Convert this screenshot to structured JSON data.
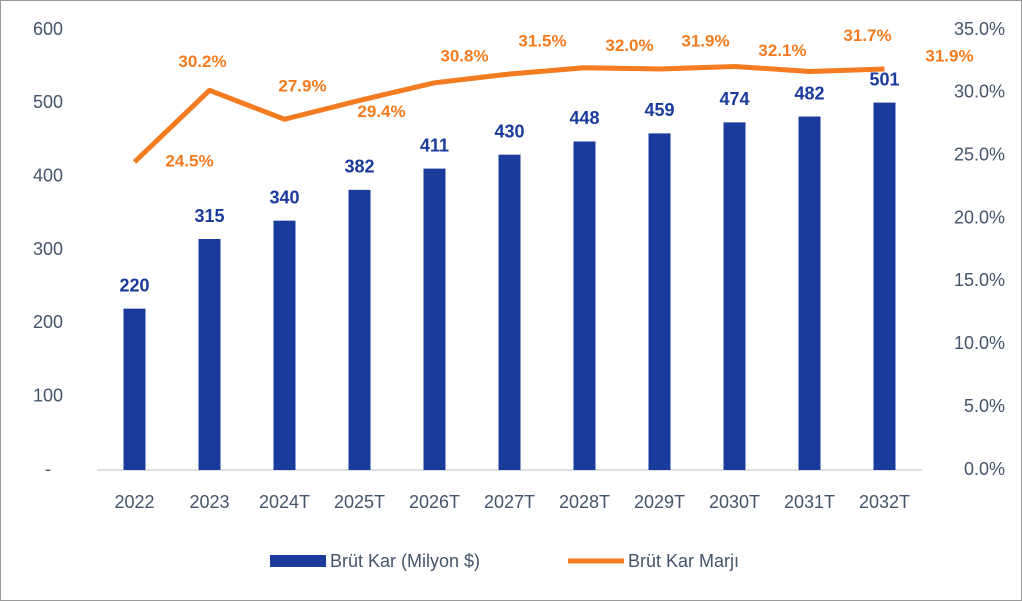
{
  "chart_data": {
    "type": "bar_line",
    "categories": [
      "2022",
      "2023",
      "2024T",
      "2025T",
      "2026T",
      "2027T",
      "2028T",
      "2029T",
      "2030T",
      "2031T",
      "2032T"
    ],
    "series": [
      {
        "name": "Brüt Kar (Milyon $)",
        "color": "#1a3a9c",
        "values": [
          220,
          315,
          340,
          382,
          411,
          430,
          448,
          459,
          474,
          482,
          501
        ]
      },
      {
        "name": "Brüt Kar Marjı",
        "color": "#f47b20",
        "axis": "y2",
        "values": [
          24.5,
          30.2,
          27.9,
          29.4,
          30.8,
          31.5,
          32.0,
          31.9,
          32.1,
          31.7,
          31.9
        ],
        "value_labels": [
          "24.5%",
          "30.2%",
          "27.9%",
          "29.4%",
          "30.8%",
          "31.5%",
          "32.0%",
          "31.9%",
          "32.1%",
          "31.7%",
          "31.9%"
        ]
      }
    ],
    "ylim": [
      0,
      600
    ],
    "yticks": [
      {
        "value": 0,
        "label": "-"
      },
      100,
      200,
      300,
      400,
      500,
      600
    ],
    "y2lim": [
      0,
      35
    ],
    "y2ticks": [
      {
        "value": 0,
        "label": "0.0%"
      },
      {
        "value": 5,
        "label": "5.0%"
      },
      {
        "value": 10,
        "label": "10.0%"
      },
      {
        "value": 15,
        "label": "15.0%"
      },
      {
        "value": 20,
        "label": "20.0%"
      },
      {
        "value": 25,
        "label": "25.0%"
      },
      {
        "value": 30,
        "label": "30.0%"
      },
      {
        "value": 35,
        "label": "35.0%"
      }
    ],
    "legend": "bottom"
  }
}
